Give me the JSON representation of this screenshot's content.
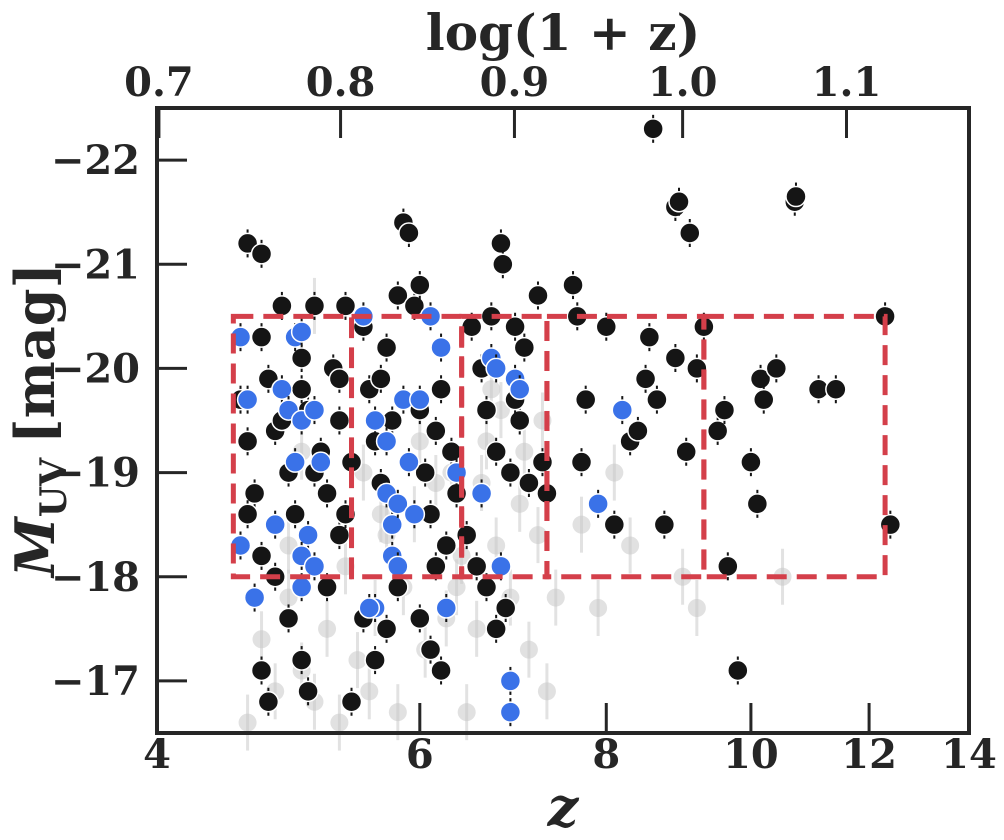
{
  "chart_data": {
    "type": "scatter",
    "title": "",
    "xlabel": "z",
    "ylabel_main": "M",
    "ylabel_sub": "UV",
    "ylabel_unit": "[mag]",
    "top_xlabel": "log(1 + z)",
    "x_scale": "log",
    "xlim": [
      4,
      14
    ],
    "ylim": [
      -16.5,
      -22.5
    ],
    "y_inverted": true,
    "x_ticks": [
      4,
      6,
      8,
      10,
      12,
      14
    ],
    "y_ticks": [
      -17,
      -18,
      -19,
      -20,
      -21,
      -22
    ],
    "y_tick_labels": [
      "−17",
      "−18",
      "−19",
      "−20",
      "−21",
      "−22"
    ],
    "top_ticks": [
      0.7,
      0.8,
      0.9,
      1.0,
      1.1
    ],
    "top_tick_labels": [
      "0.7",
      "0.8",
      "0.9",
      "1.0",
      "1.1"
    ],
    "grid": false,
    "legend": "none",
    "colors": {
      "black_points": "#151515",
      "blue_points": "#3a72e8",
      "grey_points": "#c8c8c8",
      "boxes": "#d43f4a",
      "axis": "#262626"
    },
    "selection_boxes": [
      {
        "z_min": 4.5,
        "z_max": 5.4,
        "muv_bright": -20.5,
        "muv_faint": -18.0
      },
      {
        "z_min": 5.4,
        "z_max": 6.4,
        "muv_bright": -20.5,
        "muv_faint": -18.0
      },
      {
        "z_min": 6.4,
        "z_max": 7.3,
        "muv_bright": -20.5,
        "muv_faint": -18.0
      },
      {
        "z_min": 7.3,
        "z_max": 9.3,
        "muv_bright": -20.5,
        "muv_faint": -18.0
      },
      {
        "z_min": 9.3,
        "z_max": 12.3,
        "muv_bright": -20.5,
        "muv_faint": -18.0
      }
    ],
    "series": [
      {
        "marker": "grey",
        "points": [
          [
            4.6,
            -16.6
          ],
          [
            4.7,
            -17.4
          ],
          [
            4.8,
            -16.9
          ],
          [
            4.9,
            -17.8
          ],
          [
            5.0,
            -17.1
          ],
          [
            5.1,
            -16.8
          ],
          [
            5.2,
            -17.5
          ],
          [
            5.3,
            -16.6
          ],
          [
            5.35,
            -18.1
          ],
          [
            5.45,
            -17.2
          ],
          [
            5.55,
            -16.9
          ],
          [
            5.6,
            -17.7
          ],
          [
            5.7,
            -18.4
          ],
          [
            5.8,
            -16.7
          ],
          [
            5.85,
            -17.9
          ],
          [
            5.95,
            -18.6
          ],
          [
            6.05,
            -17.3
          ],
          [
            6.15,
            -18.9
          ],
          [
            6.25,
            -17.6
          ],
          [
            6.3,
            -19.0
          ],
          [
            6.4,
            -18.2
          ],
          [
            6.45,
            -16.7
          ],
          [
            6.55,
            -17.5
          ],
          [
            6.6,
            -18.9
          ],
          [
            6.65,
            -19.3
          ],
          [
            6.75,
            -18.3
          ],
          [
            6.8,
            -19.6
          ],
          [
            6.9,
            -17.8
          ],
          [
            7.0,
            -18.7
          ],
          [
            7.05,
            -19.2
          ],
          [
            7.1,
            -17.3
          ],
          [
            7.2,
            -18.4
          ],
          [
            7.3,
            -16.9
          ],
          [
            7.4,
            -17.8
          ],
          [
            7.7,
            -18.5
          ],
          [
            7.9,
            -17.7
          ],
          [
            8.1,
            -19.0
          ],
          [
            8.3,
            -18.3
          ],
          [
            9.0,
            -18.0
          ],
          [
            9.2,
            -17.7
          ],
          [
            10.5,
            -18.0
          ],
          [
            5.1,
            -20.6
          ],
          [
            5.0,
            -19.2
          ],
          [
            5.5,
            -19.0
          ],
          [
            6.0,
            -19.3
          ],
          [
            5.65,
            -18.6
          ],
          [
            4.9,
            -18.3
          ],
          [
            6.35,
            -17.9
          ],
          [
            6.7,
            -19.8
          ],
          [
            7.25,
            -19.5
          ]
        ]
      },
      {
        "marker": "black",
        "points": [
          [
            4.6,
            -21.2
          ],
          [
            4.7,
            -21.1
          ],
          [
            4.55,
            -19.7
          ],
          [
            4.6,
            -19.3
          ],
          [
            4.65,
            -18.8
          ],
          [
            4.7,
            -20.3
          ],
          [
            4.75,
            -19.9
          ],
          [
            4.8,
            -19.4
          ],
          [
            4.85,
            -20.6
          ],
          [
            4.9,
            -19.0
          ],
          [
            4.95,
            -18.6
          ],
          [
            5.0,
            -20.1
          ],
          [
            5.05,
            -19.6
          ],
          [
            5.1,
            -20.6
          ],
          [
            5.15,
            -19.2
          ],
          [
            5.2,
            -18.8
          ],
          [
            5.25,
            -20.0
          ],
          [
            5.3,
            -19.5
          ],
          [
            5.35,
            -20.6
          ],
          [
            5.4,
            -19.1
          ],
          [
            4.6,
            -18.6
          ],
          [
            4.7,
            -18.2
          ],
          [
            4.8,
            -18.0
          ],
          [
            4.9,
            -17.6
          ],
          [
            5.0,
            -17.2
          ],
          [
            4.75,
            -16.8
          ],
          [
            5.05,
            -16.9
          ],
          [
            4.7,
            -17.1
          ],
          [
            5.2,
            -17.9
          ],
          [
            5.3,
            -18.4
          ],
          [
            5.5,
            -20.4
          ],
          [
            5.55,
            -19.8
          ],
          [
            5.6,
            -19.3
          ],
          [
            5.65,
            -18.9
          ],
          [
            5.7,
            -20.2
          ],
          [
            5.75,
            -19.5
          ],
          [
            5.8,
            -20.7
          ],
          [
            5.85,
            -21.4
          ],
          [
            5.9,
            -21.3
          ],
          [
            5.95,
            -20.6
          ],
          [
            6.0,
            -20.8
          ],
          [
            6.05,
            -19.0
          ],
          [
            6.1,
            -18.6
          ],
          [
            6.15,
            -19.4
          ],
          [
            6.2,
            -19.8
          ],
          [
            6.25,
            -18.3
          ],
          [
            6.3,
            -19.2
          ],
          [
            6.35,
            -18.8
          ],
          [
            5.5,
            -17.6
          ],
          [
            5.6,
            -17.2
          ],
          [
            5.7,
            -17.5
          ],
          [
            5.4,
            -16.8
          ],
          [
            6.0,
            -17.6
          ],
          [
            6.1,
            -17.3
          ],
          [
            6.2,
            -17.1
          ],
          [
            5.8,
            -17.9
          ],
          [
            6.5,
            -20.4
          ],
          [
            6.6,
            -20.0
          ],
          [
            6.65,
            -19.6
          ],
          [
            6.7,
            -20.5
          ],
          [
            6.75,
            -19.2
          ],
          [
            6.8,
            -21.2
          ],
          [
            6.82,
            -21.0
          ],
          [
            6.9,
            -19.0
          ],
          [
            6.95,
            -20.4
          ],
          [
            7.0,
            -19.5
          ],
          [
            7.05,
            -20.2
          ],
          [
            7.1,
            -18.9
          ],
          [
            7.2,
            -20.7
          ],
          [
            7.25,
            -19.1
          ],
          [
            6.55,
            -18.1
          ],
          [
            6.65,
            -17.9
          ],
          [
            6.75,
            -17.5
          ],
          [
            6.45,
            -18.4
          ],
          [
            6.85,
            -17.7
          ],
          [
            7.3,
            -18.8
          ],
          [
            7.6,
            -20.8
          ],
          [
            7.65,
            -20.5
          ],
          [
            7.7,
            -19.1
          ],
          [
            7.75,
            -19.7
          ],
          [
            8.0,
            -20.4
          ],
          [
            8.1,
            -18.5
          ],
          [
            8.3,
            -19.3
          ],
          [
            8.4,
            -19.4
          ],
          [
            8.5,
            -19.9
          ],
          [
            8.55,
            -20.3
          ],
          [
            8.6,
            -22.3
          ],
          [
            8.65,
            -19.7
          ],
          [
            8.75,
            -18.5
          ],
          [
            8.9,
            -20.1
          ],
          [
            8.9,
            -21.55
          ],
          [
            8.95,
            -21.6
          ],
          [
            9.05,
            -19.2
          ],
          [
            9.1,
            -21.3
          ],
          [
            9.2,
            -20.0
          ],
          [
            9.3,
            -20.4
          ],
          [
            9.5,
            -19.4
          ],
          [
            9.6,
            -19.6
          ],
          [
            9.65,
            -18.1
          ],
          [
            9.8,
            -17.1
          ],
          [
            10.0,
            -19.1
          ],
          [
            10.1,
            -18.7
          ],
          [
            10.15,
            -19.9
          ],
          [
            10.2,
            -19.7
          ],
          [
            10.4,
            -20.0
          ],
          [
            10.7,
            -21.6
          ],
          [
            10.72,
            -21.65
          ],
          [
            11.1,
            -19.8
          ],
          [
            11.4,
            -19.8
          ],
          [
            12.3,
            -20.5
          ],
          [
            12.4,
            -18.5
          ],
          [
            5.0,
            -19.8
          ],
          [
            4.85,
            -19.5
          ],
          [
            5.1,
            -19.0
          ],
          [
            5.3,
            -19.9
          ],
          [
            5.65,
            -19.9
          ],
          [
            6.0,
            -19.6
          ],
          [
            6.95,
            -19.7
          ],
          [
            6.15,
            -18.1
          ],
          [
            5.35,
            -18.6
          ]
        ]
      },
      {
        "marker": "blue",
        "points": [
          [
            4.55,
            -20.3
          ],
          [
            4.6,
            -19.7
          ],
          [
            4.55,
            -18.3
          ],
          [
            4.65,
            -17.8
          ],
          [
            4.85,
            -19.8
          ],
          [
            4.9,
            -19.6
          ],
          [
            4.95,
            -20.3
          ],
          [
            5.0,
            -20.35
          ],
          [
            4.95,
            -19.1
          ],
          [
            5.0,
            -19.5
          ],
          [
            5.1,
            -19.6
          ],
          [
            5.05,
            -18.4
          ],
          [
            5.0,
            -18.2
          ],
          [
            5.1,
            -18.1
          ],
          [
            5.0,
            -17.9
          ],
          [
            5.15,
            -19.1
          ],
          [
            5.5,
            -20.5
          ],
          [
            5.6,
            -19.5
          ],
          [
            5.7,
            -19.3
          ],
          [
            5.7,
            -18.8
          ],
          [
            5.75,
            -18.5
          ],
          [
            5.75,
            -18.2
          ],
          [
            5.8,
            -18.1
          ],
          [
            5.85,
            -19.7
          ],
          [
            5.9,
            -19.1
          ],
          [
            5.8,
            -18.7
          ],
          [
            5.95,
            -18.6
          ],
          [
            6.0,
            -19.7
          ],
          [
            6.1,
            -20.5
          ],
          [
            6.2,
            -20.2
          ],
          [
            6.35,
            -19.0
          ],
          [
            6.25,
            -17.7
          ],
          [
            5.6,
            -17.7
          ],
          [
            6.6,
            -18.8
          ],
          [
            6.7,
            -20.1
          ],
          [
            6.75,
            -20.0
          ],
          [
            6.8,
            -18.1
          ],
          [
            6.95,
            -19.9
          ],
          [
            7.0,
            -19.8
          ],
          [
            6.9,
            -17.0
          ],
          [
            6.9,
            -16.7
          ],
          [
            7.9,
            -18.7
          ],
          [
            8.2,
            -19.6
          ],
          [
            5.55,
            -17.7
          ],
          [
            4.8,
            -18.5
          ]
        ]
      }
    ]
  }
}
